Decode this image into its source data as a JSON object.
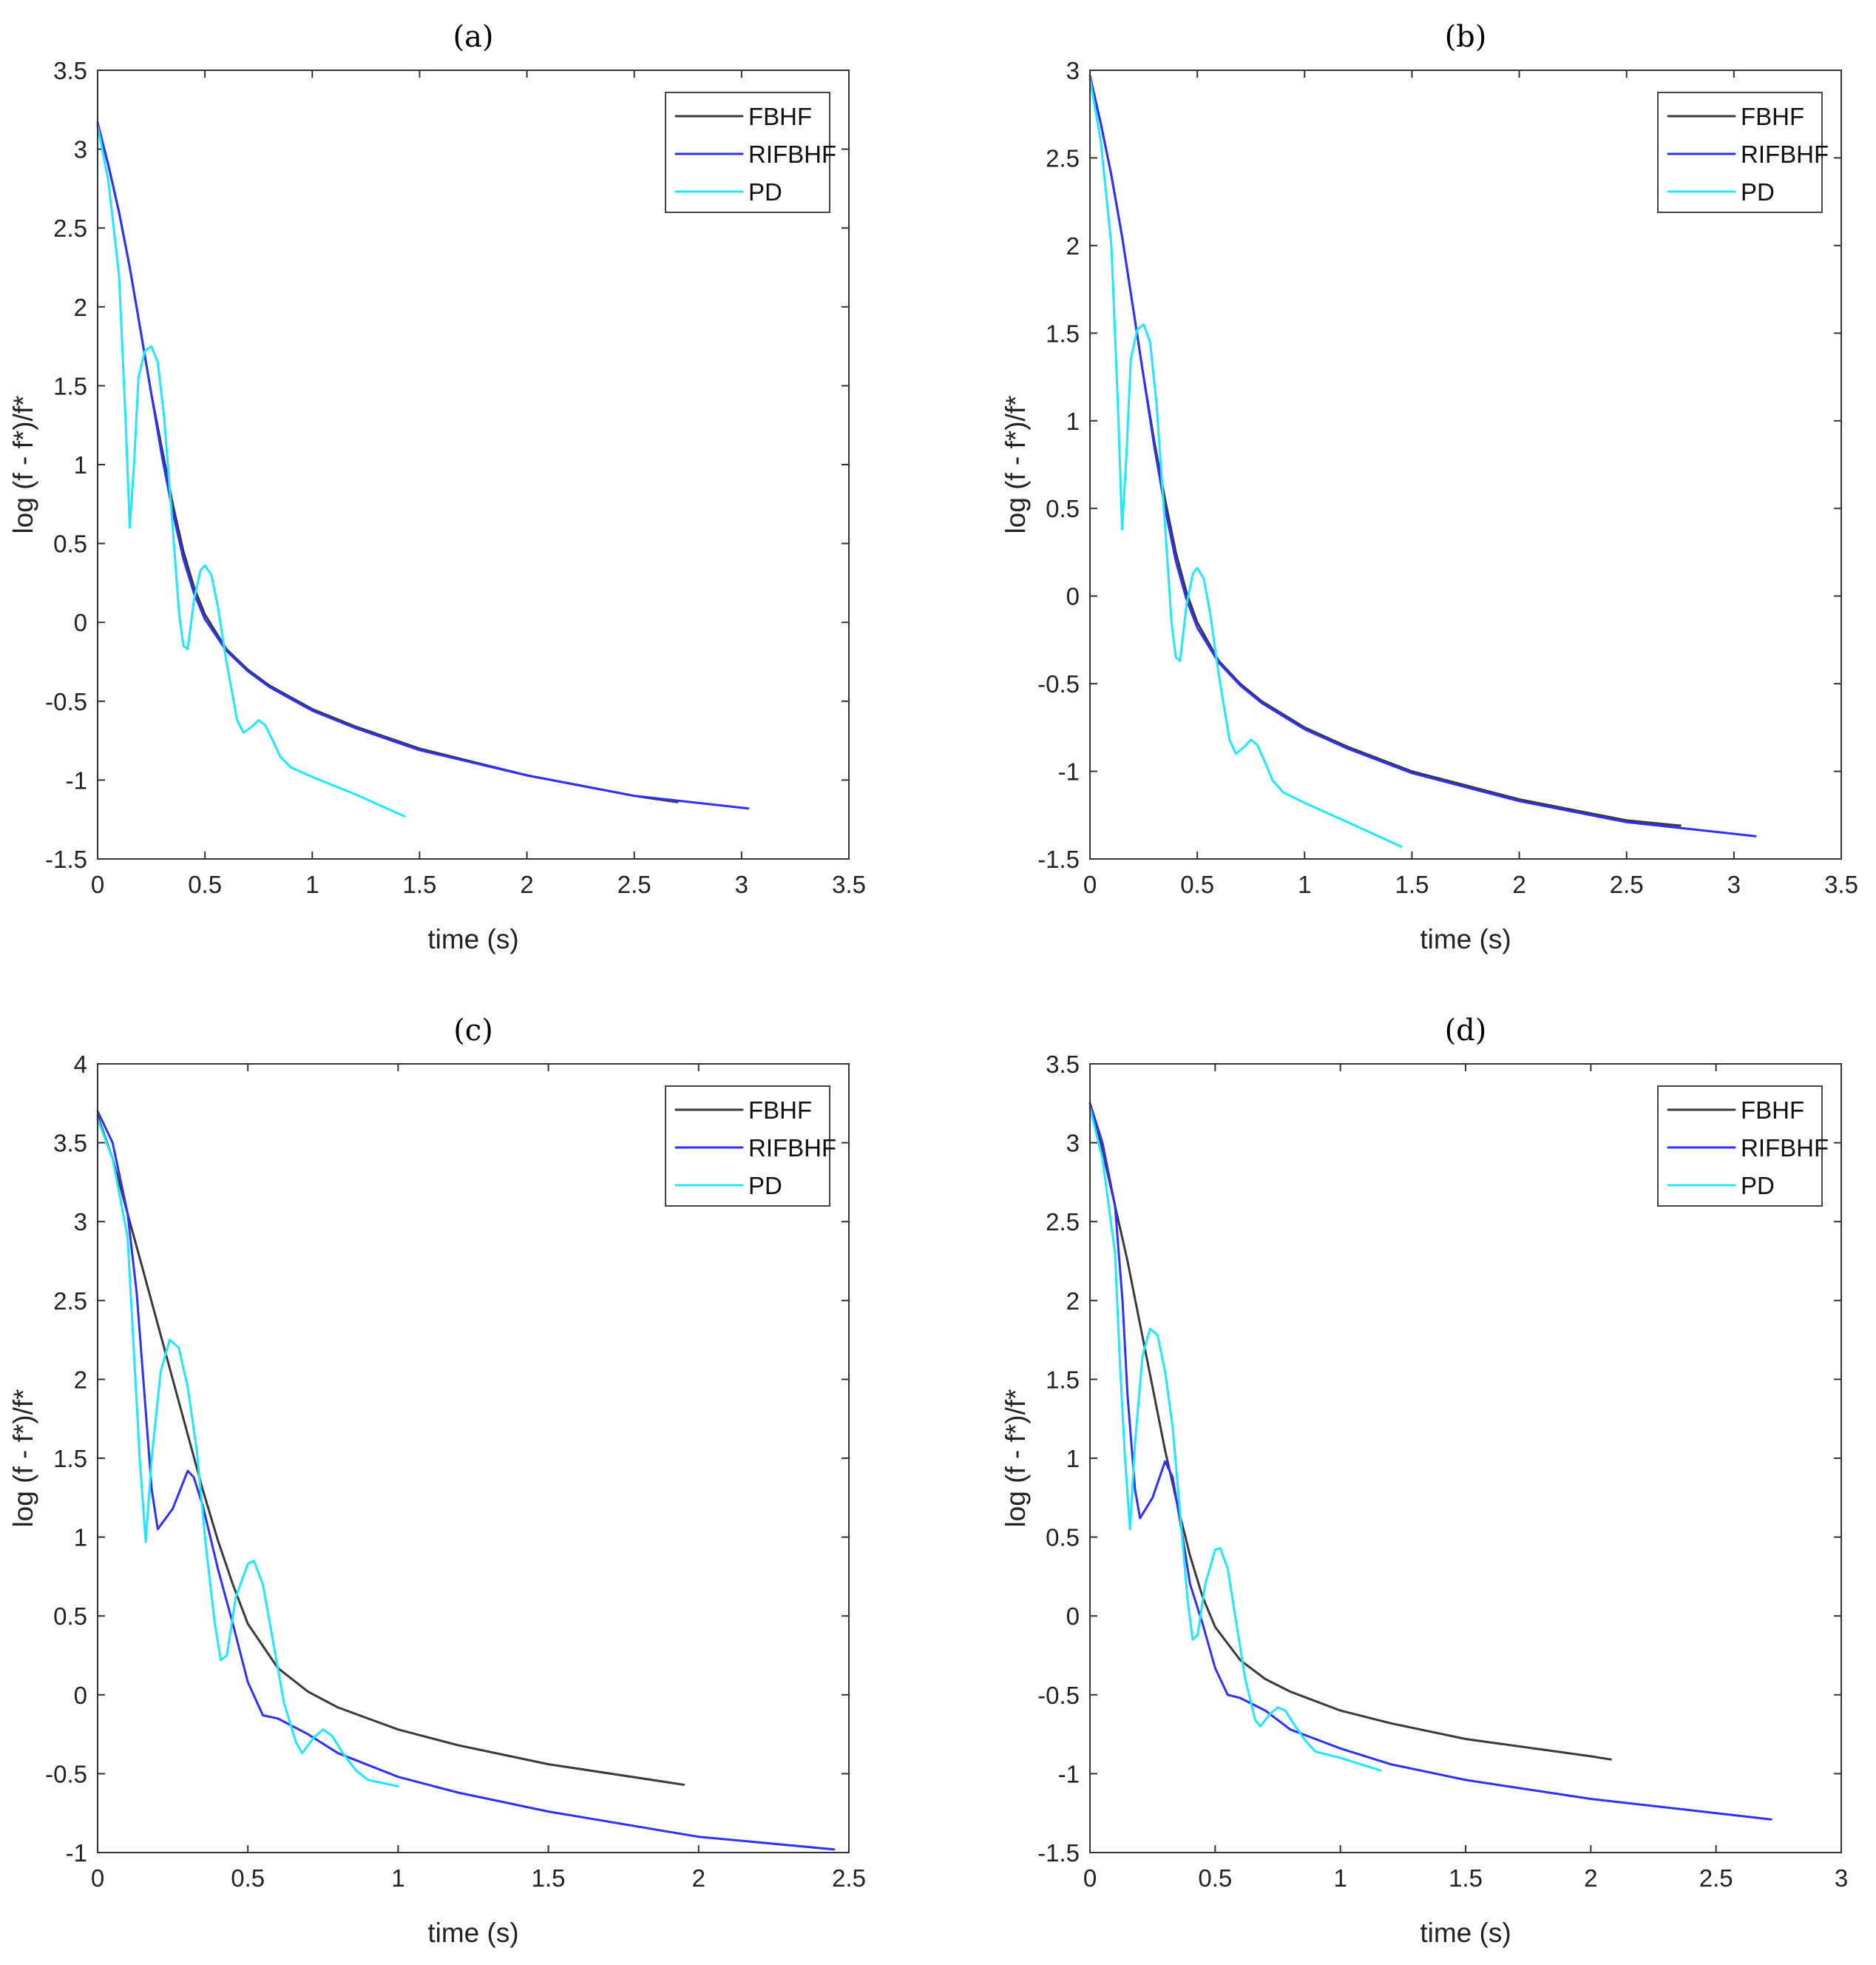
{
  "colors": {
    "FBHF": "#3a3a3a",
    "RIFBHF": "#2f2fff",
    "PD": "#1de8ff"
  },
  "chart_data": [
    {
      "type": "line",
      "title": "(a)",
      "xlabel": "time (s)",
      "ylabel": "log (f - f*)/f*",
      "xlim": [
        0,
        3.5
      ],
      "ylim": [
        -1.5,
        3.5
      ],
      "xticks": [
        "0",
        "0.5",
        "1",
        "1.5",
        "2",
        "2.5",
        "3",
        "3.5"
      ],
      "yticks": [
        "-1.5",
        "-1",
        "-0.5",
        "0",
        "0.5",
        "1",
        "1.5",
        "2",
        "2.5",
        "3",
        "3.5"
      ],
      "legend": [
        "FBHF",
        "RIFBHF",
        "PD"
      ],
      "legend_position": "top-right",
      "series": [
        {
          "name": "FBHF",
          "x": [
            0,
            0.05,
            0.1,
            0.15,
            0.2,
            0.25,
            0.3,
            0.35,
            0.4,
            0.45,
            0.5,
            0.6,
            0.7,
            0.8,
            1.0,
            1.2,
            1.5,
            2.0,
            2.5,
            2.7
          ],
          "y": [
            3.15,
            2.9,
            2.6,
            2.25,
            1.85,
            1.45,
            1.1,
            0.75,
            0.45,
            0.22,
            0.05,
            -0.17,
            -0.3,
            -0.4,
            -0.55,
            -0.66,
            -0.8,
            -0.97,
            -1.1,
            -1.14
          ]
        },
        {
          "name": "RIFBHF",
          "x": [
            0,
            0.05,
            0.1,
            0.15,
            0.2,
            0.25,
            0.3,
            0.35,
            0.4,
            0.45,
            0.5,
            0.6,
            0.7,
            0.8,
            1.0,
            1.2,
            1.5,
            2.0,
            2.5,
            3.03
          ],
          "y": [
            3.17,
            2.9,
            2.6,
            2.25,
            1.85,
            1.45,
            1.05,
            0.7,
            0.4,
            0.18,
            0.02,
            -0.18,
            -0.31,
            -0.41,
            -0.56,
            -0.67,
            -0.81,
            -0.97,
            -1.1,
            -1.18
          ]
        },
        {
          "name": "PD",
          "x": [
            0,
            0.05,
            0.1,
            0.13,
            0.15,
            0.17,
            0.19,
            0.22,
            0.25,
            0.28,
            0.31,
            0.35,
            0.38,
            0.4,
            0.42,
            0.45,
            0.48,
            0.5,
            0.53,
            0.56,
            0.6,
            0.65,
            0.68,
            0.72,
            0.75,
            0.78,
            0.82,
            0.85,
            0.9,
            1.0,
            1.2,
            1.43
          ],
          "y": [
            3.15,
            2.8,
            2.2,
            1.3,
            0.6,
            1.0,
            1.55,
            1.72,
            1.75,
            1.65,
            1.3,
            0.6,
            0.05,
            -0.15,
            -0.17,
            0.15,
            0.33,
            0.36,
            0.3,
            0.1,
            -0.25,
            -0.62,
            -0.7,
            -0.66,
            -0.62,
            -0.65,
            -0.76,
            -0.85,
            -0.92,
            -0.98,
            -1.09,
            -1.23
          ]
        }
      ]
    },
    {
      "type": "line",
      "title": "(b)",
      "xlabel": "time (s)",
      "ylabel": "log (f - f*)/f*",
      "xlim": [
        0,
        3.5
      ],
      "ylim": [
        -1.5,
        3
      ],
      "xticks": [
        "0",
        "0.5",
        "1",
        "1.5",
        "2",
        "2.5",
        "3",
        "3.5"
      ],
      "yticks": [
        "-1.5",
        "-1",
        "-0.5",
        "0",
        "0.5",
        "1",
        "1.5",
        "2",
        "2.5",
        "3"
      ],
      "legend": [
        "FBHF",
        "RIFBHF",
        "PD"
      ],
      "legend_position": "top-right",
      "series": [
        {
          "name": "FBHF",
          "x": [
            0,
            0.05,
            0.1,
            0.15,
            0.2,
            0.25,
            0.3,
            0.35,
            0.4,
            0.45,
            0.5,
            0.6,
            0.7,
            0.8,
            1.0,
            1.2,
            1.5,
            2.0,
            2.5,
            2.75
          ],
          "y": [
            2.95,
            2.7,
            2.4,
            2.05,
            1.65,
            1.25,
            0.88,
            0.55,
            0.25,
            0.02,
            -0.15,
            -0.37,
            -0.5,
            -0.6,
            -0.75,
            -0.86,
            -1.0,
            -1.16,
            -1.28,
            -1.31
          ]
        },
        {
          "name": "RIFBHF",
          "x": [
            0,
            0.05,
            0.1,
            0.15,
            0.2,
            0.25,
            0.3,
            0.35,
            0.4,
            0.45,
            0.5,
            0.6,
            0.7,
            0.8,
            1.0,
            1.2,
            1.5,
            2.0,
            2.5,
            3.1
          ],
          "y": [
            2.97,
            2.7,
            2.4,
            2.05,
            1.65,
            1.25,
            0.85,
            0.5,
            0.2,
            -0.02,
            -0.18,
            -0.38,
            -0.51,
            -0.61,
            -0.76,
            -0.87,
            -1.01,
            -1.17,
            -1.29,
            -1.37
          ]
        },
        {
          "name": "PD",
          "x": [
            0,
            0.05,
            0.1,
            0.13,
            0.15,
            0.17,
            0.19,
            0.22,
            0.25,
            0.28,
            0.31,
            0.35,
            0.38,
            0.4,
            0.42,
            0.45,
            0.48,
            0.5,
            0.53,
            0.56,
            0.6,
            0.65,
            0.68,
            0.72,
            0.75,
            0.78,
            0.82,
            0.85,
            0.9,
            1.0,
            1.2,
            1.45
          ],
          "y": [
            2.95,
            2.6,
            2.0,
            1.1,
            0.38,
            0.8,
            1.35,
            1.52,
            1.55,
            1.45,
            1.1,
            0.4,
            -0.15,
            -0.35,
            -0.37,
            -0.05,
            0.13,
            0.16,
            0.1,
            -0.1,
            -0.45,
            -0.82,
            -0.9,
            -0.86,
            -0.82,
            -0.85,
            -0.96,
            -1.05,
            -1.12,
            -1.18,
            -1.29,
            -1.43
          ]
        }
      ]
    },
    {
      "type": "line",
      "title": "(c)",
      "xlabel": "time (s)",
      "ylabel": "log (f - f*)/f*",
      "xlim": [
        0,
        2.5
      ],
      "ylim": [
        -1,
        4
      ],
      "xticks": [
        "0",
        "0.5",
        "1",
        "1.5",
        "2",
        "2.5"
      ],
      "yticks": [
        "-1",
        "-0.5",
        "0",
        "0.5",
        "1",
        "1.5",
        "2",
        "2.5",
        "3",
        "3.5",
        "4"
      ],
      "legend": [
        "FBHF",
        "RIFBHF",
        "PD"
      ],
      "legend_position": "top-right",
      "series": [
        {
          "name": "FBHF",
          "x": [
            0,
            0.05,
            0.1,
            0.15,
            0.2,
            0.25,
            0.3,
            0.35,
            0.4,
            0.45,
            0.5,
            0.6,
            0.7,
            0.8,
            1.0,
            1.2,
            1.5,
            1.95
          ],
          "y": [
            3.67,
            3.4,
            3.05,
            2.7,
            2.35,
            2.0,
            1.65,
            1.3,
            0.98,
            0.7,
            0.45,
            0.17,
            0.02,
            -0.08,
            -0.22,
            -0.32,
            -0.44,
            -0.57
          ]
        },
        {
          "name": "RIFBHF",
          "x": [
            0,
            0.05,
            0.1,
            0.13,
            0.15,
            0.18,
            0.2,
            0.25,
            0.3,
            0.32,
            0.35,
            0.4,
            0.45,
            0.5,
            0.55,
            0.6,
            0.7,
            0.8,
            1.0,
            1.2,
            1.5,
            2.0,
            2.45
          ],
          "y": [
            3.7,
            3.5,
            3.05,
            2.55,
            2.05,
            1.3,
            1.05,
            1.18,
            1.42,
            1.38,
            1.2,
            0.8,
            0.45,
            0.08,
            -0.13,
            -0.15,
            -0.25,
            -0.37,
            -0.52,
            -0.62,
            -0.74,
            -0.9,
            -0.98
          ]
        },
        {
          "name": "PD",
          "x": [
            0,
            0.05,
            0.1,
            0.12,
            0.14,
            0.16,
            0.18,
            0.21,
            0.24,
            0.27,
            0.3,
            0.33,
            0.36,
            0.39,
            0.41,
            0.43,
            0.46,
            0.5,
            0.52,
            0.55,
            0.58,
            0.62,
            0.66,
            0.68,
            0.72,
            0.75,
            0.78,
            0.82,
            0.86,
            0.9,
            1.0
          ],
          "y": [
            3.65,
            3.4,
            2.9,
            2.2,
            1.5,
            0.97,
            1.5,
            2.05,
            2.25,
            2.2,
            1.95,
            1.55,
            0.95,
            0.45,
            0.22,
            0.25,
            0.62,
            0.83,
            0.85,
            0.7,
            0.38,
            -0.05,
            -0.3,
            -0.37,
            -0.27,
            -0.22,
            -0.26,
            -0.38,
            -0.48,
            -0.54,
            -0.58
          ]
        }
      ]
    },
    {
      "type": "line",
      "title": "(d)",
      "xlabel": "time (s)",
      "ylabel": "log (f - f*)/f*",
      "xlim": [
        0,
        3
      ],
      "ylim": [
        -1.5,
        3.5
      ],
      "xticks": [
        "0",
        "0.5",
        "1",
        "1.5",
        "2",
        "2.5",
        "3"
      ],
      "yticks": [
        "-1.5",
        "-1",
        "-0.5",
        "0",
        "0.5",
        "1",
        "1.5",
        "2",
        "2.5",
        "3",
        "3.5"
      ],
      "legend": [
        "FBHF",
        "RIFBHF",
        "PD"
      ],
      "legend_position": "top-right",
      "series": [
        {
          "name": "FBHF",
          "x": [
            0,
            0.05,
            0.1,
            0.15,
            0.2,
            0.25,
            0.3,
            0.35,
            0.4,
            0.45,
            0.5,
            0.6,
            0.7,
            0.8,
            1.0,
            1.2,
            1.5,
            2.0,
            2.08
          ],
          "y": [
            3.25,
            2.95,
            2.6,
            2.25,
            1.85,
            1.45,
            1.05,
            0.7,
            0.38,
            0.12,
            -0.07,
            -0.28,
            -0.4,
            -0.48,
            -0.6,
            -0.68,
            -0.78,
            -0.89,
            -0.91
          ]
        },
        {
          "name": "RIFBHF",
          "x": [
            0,
            0.05,
            0.1,
            0.13,
            0.15,
            0.18,
            0.2,
            0.25,
            0.3,
            0.33,
            0.36,
            0.4,
            0.45,
            0.5,
            0.55,
            0.6,
            0.7,
            0.8,
            1.0,
            1.2,
            1.5,
            2.0,
            2.5,
            2.72
          ],
          "y": [
            3.25,
            3.0,
            2.6,
            2.0,
            1.4,
            0.8,
            0.62,
            0.75,
            0.98,
            0.88,
            0.6,
            0.2,
            -0.05,
            -0.33,
            -0.5,
            -0.52,
            -0.6,
            -0.72,
            -0.84,
            -0.94,
            -1.04,
            -1.16,
            -1.25,
            -1.29
          ]
        },
        {
          "name": "PD",
          "x": [
            0,
            0.05,
            0.1,
            0.12,
            0.14,
            0.16,
            0.18,
            0.21,
            0.24,
            0.27,
            0.3,
            0.33,
            0.36,
            0.39,
            0.41,
            0.43,
            0.46,
            0.5,
            0.52,
            0.55,
            0.58,
            0.62,
            0.66,
            0.68,
            0.72,
            0.75,
            0.78,
            0.82,
            0.86,
            0.9,
            1.0,
            1.16
          ],
          "y": [
            3.22,
            2.9,
            2.3,
            1.6,
            1.0,
            0.55,
            1.1,
            1.65,
            1.82,
            1.78,
            1.55,
            1.2,
            0.65,
            0.1,
            -0.15,
            -0.12,
            0.2,
            0.42,
            0.43,
            0.3,
            0.0,
            -0.4,
            -0.66,
            -0.7,
            -0.62,
            -0.58,
            -0.6,
            -0.7,
            -0.79,
            -0.86,
            -0.9,
            -0.98
          ]
        }
      ]
    }
  ]
}
